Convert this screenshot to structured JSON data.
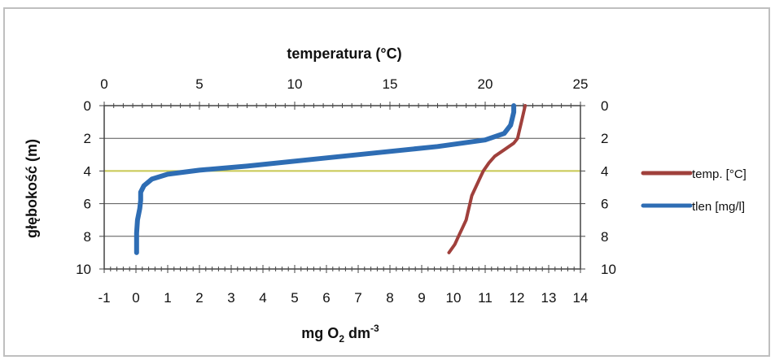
{
  "chart_data": {
    "type": "line",
    "top_axis": {
      "title": "temperatura (°C)",
      "range": [
        0,
        25
      ],
      "ticks": [
        "0",
        "5",
        "10",
        "15",
        "20",
        "25"
      ]
    },
    "bottom_axis": {
      "title_main": "mg O",
      "title_sub": "2",
      "title_unit": " dm",
      "title_sup": "-3",
      "range": [
        -1,
        14
      ],
      "ticks": [
        "-1",
        "0",
        "1",
        "2",
        "3",
        "4",
        "5",
        "6",
        "7",
        "8",
        "9",
        "10",
        "11",
        "12",
        "13",
        "14"
      ]
    },
    "left_axis": {
      "title": "głębokość (m)",
      "range": [
        0,
        10
      ],
      "inverted": true,
      "ticks": [
        "0",
        "2",
        "4",
        "6",
        "8",
        "10"
      ]
    },
    "right_axis": {
      "range": [
        0,
        10
      ],
      "ticks": [
        "0",
        "2",
        "4",
        "6",
        "8",
        "10"
      ]
    },
    "grid": true,
    "legend_position": "right",
    "series": [
      {
        "name": "temp. [°C]",
        "axis": "top",
        "color": "#A0403C",
        "points": [
          [
            22.1,
            0
          ],
          [
            22.0,
            0.5
          ],
          [
            21.9,
            1
          ],
          [
            21.8,
            1.5
          ],
          [
            21.7,
            2
          ],
          [
            21.5,
            2.3
          ],
          [
            21.0,
            2.7
          ],
          [
            20.5,
            3.1
          ],
          [
            20.2,
            3.5
          ],
          [
            19.9,
            4
          ],
          [
            19.7,
            4.5
          ],
          [
            19.5,
            5
          ],
          [
            19.3,
            5.5
          ],
          [
            19.2,
            6
          ],
          [
            19.1,
            6.5
          ],
          [
            19.0,
            7
          ],
          [
            18.8,
            7.5
          ],
          [
            18.6,
            8
          ],
          [
            18.4,
            8.5
          ],
          [
            18.1,
            9.0
          ]
        ]
      },
      {
        "name": "tlen [mg/l]",
        "axis": "bottom",
        "color": "#2E6DB4",
        "points": [
          [
            11.9,
            0
          ],
          [
            11.9,
            0.4
          ],
          [
            11.85,
            0.8
          ],
          [
            11.8,
            1.2
          ],
          [
            11.6,
            1.7
          ],
          [
            11.0,
            2.1
          ],
          [
            9.5,
            2.5
          ],
          [
            7.5,
            2.9
          ],
          [
            5.5,
            3.3
          ],
          [
            3.5,
            3.7
          ],
          [
            2.0,
            3.95
          ],
          [
            1.0,
            4.2
          ],
          [
            0.5,
            4.5
          ],
          [
            0.25,
            4.9
          ],
          [
            0.15,
            5.3
          ],
          [
            0.15,
            5.8
          ],
          [
            0.12,
            6.3
          ],
          [
            0.05,
            7
          ],
          [
            0.02,
            7.8
          ],
          [
            0.02,
            8.5
          ],
          [
            0.02,
            9.0
          ]
        ]
      }
    ]
  },
  "colors": {
    "temp": "#A0403C",
    "tlen": "#2E6DB4",
    "gridline": "#555555",
    "highlight_gridline": "#C8C850",
    "frame": "#444444"
  }
}
